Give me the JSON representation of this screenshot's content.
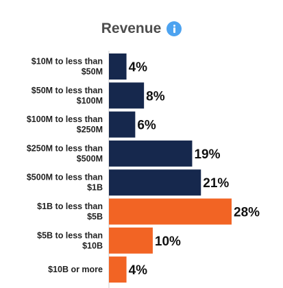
{
  "header": {
    "title": "Revenue",
    "info_icon": "info-icon"
  },
  "colors": {
    "primary_bar": "#16284d",
    "highlight_bar": "#f26424",
    "info_icon": "#4da3f0"
  },
  "chart_data": {
    "type": "bar",
    "orientation": "horizontal",
    "title": "Revenue",
    "categories": [
      [
        "$10M to less than",
        "$50M"
      ],
      [
        "$50M to less than",
        "$100M"
      ],
      [
        "$100M to less than",
        "$250M"
      ],
      [
        "$250M to less than",
        "$500M"
      ],
      [
        "$500M to less than",
        "$1B"
      ],
      [
        "$1B to less than",
        "$5B"
      ],
      [
        "$5B to less than",
        "$10B"
      ],
      [
        "$10B or more"
      ]
    ],
    "values": [
      4,
      8,
      6,
      19,
      21,
      28,
      10,
      4
    ],
    "value_labels": [
      "4%",
      "8%",
      "6%",
      "19%",
      "21%",
      "28%",
      "10%",
      "4%"
    ],
    "highlighted": [
      false,
      false,
      false,
      false,
      false,
      true,
      true,
      true
    ],
    "xlim": [
      0,
      28
    ],
    "grid": false,
    "legend": "none"
  }
}
